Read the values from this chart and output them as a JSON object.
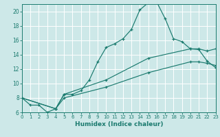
{
  "xlabel": "Humidex (Indice chaleur)",
  "bg_color": "#cde8e8",
  "grid_color": "#c0d8d8",
  "line_color": "#1a7a6e",
  "xlim": [
    0,
    23
  ],
  "ylim": [
    6,
    21
  ],
  "xticks": [
    0,
    1,
    2,
    3,
    4,
    5,
    6,
    7,
    8,
    9,
    10,
    11,
    12,
    13,
    14,
    15,
    16,
    17,
    18,
    19,
    20,
    21,
    22,
    23
  ],
  "yticks": [
    6,
    8,
    10,
    12,
    14,
    16,
    18,
    20
  ],
  "curve1_x": [
    0,
    1,
    2,
    3,
    4,
    5,
    6,
    7,
    8,
    9,
    10,
    11,
    12,
    13,
    14,
    15,
    16,
    17,
    18,
    19,
    20,
    21,
    22,
    23
  ],
  "curve1_y": [
    8.0,
    7.0,
    7.0,
    6.0,
    6.5,
    8.5,
    8.5,
    9.0,
    10.5,
    13.0,
    15.0,
    15.5,
    16.2,
    17.5,
    20.2,
    21.2,
    21.3,
    19.0,
    16.2,
    15.8,
    14.8,
    14.7,
    13.1,
    12.2
  ],
  "curve2_x": [
    0,
    4,
    5,
    10,
    15,
    20,
    21,
    22,
    23
  ],
  "curve2_y": [
    8.0,
    6.5,
    8.0,
    9.5,
    11.5,
    13.0,
    13.0,
    12.8,
    12.5
  ],
  "curve3_x": [
    0,
    4,
    5,
    10,
    15,
    20,
    21,
    22,
    23
  ],
  "curve3_y": [
    8.0,
    6.5,
    8.5,
    10.5,
    13.5,
    14.8,
    14.8,
    14.5,
    14.8
  ]
}
